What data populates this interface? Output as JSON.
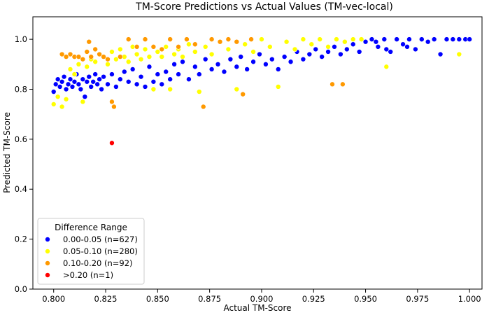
{
  "chart_data": {
    "type": "scatter",
    "title": "TM-Score Predictions vs Actual Values (TM-vec-local)",
    "xlabel": "Actual TM-Score",
    "ylabel": "Predicted TM-Score",
    "xlim": [
      0.79,
      1.006
    ],
    "ylim": [
      0.0,
      1.09
    ],
    "xticks": [
      "0.800",
      "0.825",
      "0.850",
      "0.875",
      "0.900",
      "0.925",
      "0.950",
      "0.975",
      "1.000"
    ],
    "yticks": [
      "0.0",
      "0.2",
      "0.4",
      "0.6",
      "0.8",
      "1.0"
    ],
    "grid": false,
    "legend": {
      "title": "Difference Range",
      "placement": "lower-left"
    },
    "series": [
      {
        "name": "0.00-0.05 (n=627)",
        "color": "#0000ff",
        "points": [
          [
            0.8,
            0.79
          ],
          [
            0.801,
            0.82
          ],
          [
            0.802,
            0.84
          ],
          [
            0.803,
            0.81
          ],
          [
            0.804,
            0.83
          ],
          [
            0.805,
            0.85
          ],
          [
            0.806,
            0.8
          ],
          [
            0.807,
            0.82
          ],
          [
            0.808,
            0.84
          ],
          [
            0.809,
            0.81
          ],
          [
            0.81,
            0.83
          ],
          [
            0.811,
            0.86
          ],
          [
            0.812,
            0.82
          ],
          [
            0.813,
            0.8
          ],
          [
            0.814,
            0.84
          ],
          [
            0.815,
            0.77
          ],
          [
            0.816,
            0.83
          ],
          [
            0.817,
            0.85
          ],
          [
            0.818,
            0.81
          ],
          [
            0.819,
            0.83
          ],
          [
            0.82,
            0.86
          ],
          [
            0.821,
            0.82
          ],
          [
            0.822,
            0.84
          ],
          [
            0.823,
            0.8
          ],
          [
            0.824,
            0.85
          ],
          [
            0.826,
            0.82
          ],
          [
            0.828,
            0.86
          ],
          [
            0.83,
            0.81
          ],
          [
            0.832,
            0.84
          ],
          [
            0.834,
            0.87
          ],
          [
            0.836,
            0.83
          ],
          [
            0.838,
            0.88
          ],
          [
            0.84,
            0.82
          ],
          [
            0.842,
            0.85
          ],
          [
            0.844,
            0.81
          ],
          [
            0.846,
            0.89
          ],
          [
            0.848,
            0.83
          ],
          [
            0.85,
            0.86
          ],
          [
            0.852,
            0.82
          ],
          [
            0.854,
            0.87
          ],
          [
            0.856,
            0.84
          ],
          [
            0.858,
            0.9
          ],
          [
            0.86,
            0.86
          ],
          [
            0.862,
            0.91
          ],
          [
            0.865,
            0.84
          ],
          [
            0.868,
            0.89
          ],
          [
            0.87,
            0.86
          ],
          [
            0.873,
            0.92
          ],
          [
            0.876,
            0.88
          ],
          [
            0.879,
            0.9
          ],
          [
            0.882,
            0.87
          ],
          [
            0.885,
            0.92
          ],
          [
            0.888,
            0.89
          ],
          [
            0.89,
            0.93
          ],
          [
            0.893,
            0.88
          ],
          [
            0.896,
            0.91
          ],
          [
            0.899,
            0.94
          ],
          [
            0.902,
            0.9
          ],
          [
            0.905,
            0.92
          ],
          [
            0.908,
            0.88
          ],
          [
            0.911,
            0.93
          ],
          [
            0.914,
            0.91
          ],
          [
            0.917,
            0.95
          ],
          [
            0.92,
            0.92
          ],
          [
            0.923,
            0.94
          ],
          [
            0.926,
            0.96
          ],
          [
            0.929,
            0.93
          ],
          [
            0.932,
            0.95
          ],
          [
            0.935,
            0.97
          ],
          [
            0.938,
            0.94
          ],
          [
            0.941,
            0.96
          ],
          [
            0.944,
            0.98
          ],
          [
            0.947,
            0.95
          ],
          [
            0.95,
            0.99
          ],
          [
            0.953,
            1.0
          ],
          [
            0.956,
            0.97
          ],
          [
            0.959,
            1.0
          ],
          [
            0.962,
            0.95
          ],
          [
            0.965,
            1.0
          ],
          [
            0.968,
            0.98
          ],
          [
            0.971,
            1.0
          ],
          [
            0.974,
            0.96
          ],
          [
            0.977,
            1.0
          ],
          [
            0.98,
            0.99
          ],
          [
            0.983,
            1.0
          ],
          [
            0.986,
            0.94
          ],
          [
            0.989,
            1.0
          ],
          [
            0.992,
            1.0
          ],
          [
            0.995,
            1.0
          ],
          [
            0.998,
            1.0
          ],
          [
            1.0,
            1.0
          ],
          [
            0.96,
            0.96
          ],
          [
            0.97,
            0.97
          ],
          [
            0.955,
            0.99
          ]
        ]
      },
      {
        "name": "0.05-0.10 (n=280)",
        "color": "#ffff00",
        "points": [
          [
            0.8,
            0.74
          ],
          [
            0.802,
            0.77
          ],
          [
            0.804,
            0.73
          ],
          [
            0.806,
            0.76
          ],
          [
            0.808,
            0.88
          ],
          [
            0.81,
            0.86
          ],
          [
            0.812,
            0.9
          ],
          [
            0.814,
            0.75
          ],
          [
            0.816,
            0.89
          ],
          [
            0.818,
            0.92
          ],
          [
            0.82,
            0.91
          ],
          [
            0.822,
            0.94
          ],
          [
            0.824,
            0.93
          ],
          [
            0.826,
            0.9
          ],
          [
            0.828,
            0.95
          ],
          [
            0.83,
            0.92
          ],
          [
            0.832,
            0.96
          ],
          [
            0.834,
            0.93
          ],
          [
            0.836,
            0.91
          ],
          [
            0.838,
            0.97
          ],
          [
            0.84,
            0.94
          ],
          [
            0.842,
            0.92
          ],
          [
            0.844,
            0.96
          ],
          [
            0.846,
            0.93
          ],
          [
            0.848,
            0.8
          ],
          [
            0.85,
            0.95
          ],
          [
            0.852,
            0.93
          ],
          [
            0.854,
            0.97
          ],
          [
            0.856,
            0.8
          ],
          [
            0.858,
            0.94
          ],
          [
            0.86,
            0.96
          ],
          [
            0.862,
            0.93
          ],
          [
            0.865,
            0.98
          ],
          [
            0.868,
            0.95
          ],
          [
            0.87,
            0.79
          ],
          [
            0.873,
            0.97
          ],
          [
            0.876,
            0.94
          ],
          [
            0.88,
            0.99
          ],
          [
            0.884,
            0.96
          ],
          [
            0.888,
            0.8
          ],
          [
            0.892,
            0.98
          ],
          [
            0.896,
            0.95
          ],
          [
            0.9,
            1.0
          ],
          [
            0.904,
            0.97
          ],
          [
            0.908,
            0.81
          ],
          [
            0.912,
            0.99
          ],
          [
            0.916,
            0.96
          ],
          [
            0.92,
            1.0
          ],
          [
            0.924,
            0.98
          ],
          [
            0.928,
            1.0
          ],
          [
            0.932,
            0.97
          ],
          [
            0.936,
            1.0
          ],
          [
            0.94,
            0.99
          ],
          [
            0.944,
            1.0
          ],
          [
            0.948,
            1.0
          ],
          [
            0.96,
            0.89
          ],
          [
            0.995,
            0.94
          ]
        ]
      },
      {
        "name": "0.10-0.20 (n=92)",
        "color": "#ff9900",
        "points": [
          [
            0.804,
            0.94
          ],
          [
            0.806,
            0.93
          ],
          [
            0.808,
            0.94
          ],
          [
            0.81,
            0.93
          ],
          [
            0.812,
            0.93
          ],
          [
            0.814,
            0.92
          ],
          [
            0.816,
            0.95
          ],
          [
            0.817,
            0.99
          ],
          [
            0.818,
            0.93
          ],
          [
            0.82,
            0.96
          ],
          [
            0.822,
            0.94
          ],
          [
            0.824,
            0.93
          ],
          [
            0.826,
            0.92
          ],
          [
            0.828,
            0.75
          ],
          [
            0.829,
            0.73
          ],
          [
            0.832,
            0.93
          ],
          [
            0.836,
            1.0
          ],
          [
            0.84,
            0.97
          ],
          [
            0.844,
            1.0
          ],
          [
            0.848,
            0.97
          ],
          [
            0.852,
            0.96
          ],
          [
            0.856,
            1.0
          ],
          [
            0.86,
            0.97
          ],
          [
            0.864,
            1.0
          ],
          [
            0.868,
            0.98
          ],
          [
            0.872,
            0.73
          ],
          [
            0.876,
            1.0
          ],
          [
            0.88,
            0.99
          ],
          [
            0.884,
            1.0
          ],
          [
            0.888,
            0.99
          ],
          [
            0.891,
            0.78
          ],
          [
            0.895,
            1.0
          ],
          [
            0.934,
            0.82
          ],
          [
            0.939,
            0.82
          ]
        ]
      },
      {
        "name": ">0.20 (n=1)",
        "color": "#ff0000",
        "points": [
          [
            0.828,
            0.585
          ]
        ]
      }
    ]
  }
}
